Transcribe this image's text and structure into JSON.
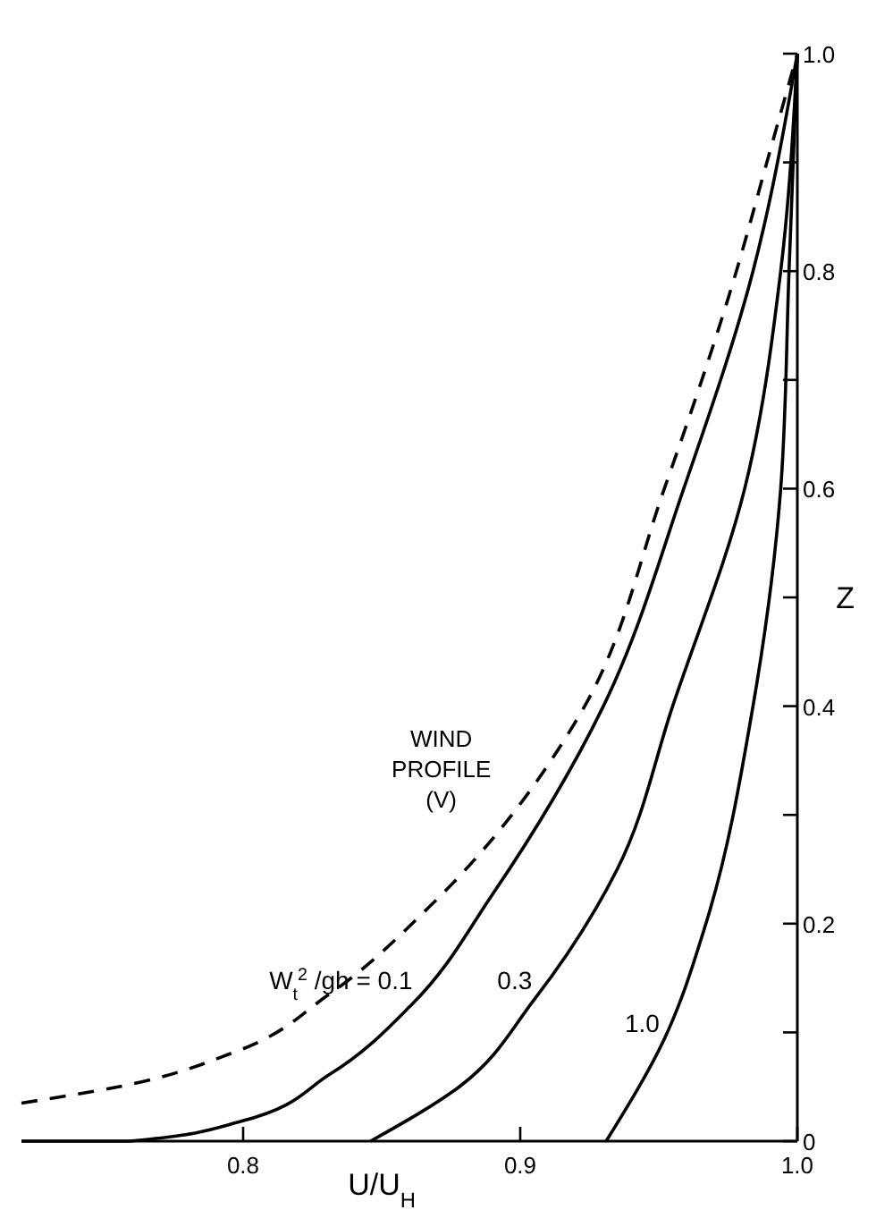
{
  "chart_data": {
    "type": "line",
    "xlabel": "U/U$_{H}$",
    "ylabel": "Z",
    "xlim": [
      0.72,
      1.0
    ],
    "ylim": [
      0,
      1
    ],
    "xticks": [
      0.8,
      0.9,
      {
        "value": 1,
        "label": "1.0"
      }
    ],
    "yticks": [
      0,
      {
        "value": 0.1,
        "label": null
      },
      0.2,
      {
        "value": 0.3,
        "label": null
      },
      0.4,
      {
        "value": 0.5,
        "label": null
      },
      0.6,
      {
        "value": 0.7,
        "label": null
      },
      0.8,
      {
        "value": 0.9,
        "label": null
      },
      {
        "value": 1,
        "label": "1.0"
      }
    ],
    "series": [
      {
        "name": "WIND PROFILE (V)",
        "color": "#000000",
        "line_style": "dashed",
        "x": [
          0.72,
          0.755,
          0.797,
          0.831,
          0.867,
          0.921,
          0.952,
          0.978,
          0.989,
          1.0
        ],
        "values": [
          0.035,
          0.05,
          0.082,
          0.135,
          0.215,
          0.39,
          0.6,
          0.8,
          0.9,
          1.0
        ]
      },
      {
        "name": "W$_{t}$$^{2}$ /gh = 0.1",
        "color": "#000000",
        "line_style": "solid",
        "x": [
          0.72,
          0.759,
          0.799,
          0.831,
          0.861,
          0.89,
          0.93,
          0.959,
          0.984,
          1.0
        ],
        "values": [
          0,
          0,
          0.018,
          0.061,
          0.126,
          0.227,
          0.4,
          0.6,
          0.8,
          1.0
        ]
      },
      {
        "name": "0.3",
        "color": "#000000",
        "line_style": "solid",
        "x": [
          0.846,
          0.878,
          0.905,
          0.935,
          0.955,
          0.981,
          0.994,
          1.0
        ],
        "values": [
          0,
          0.05,
          0.13,
          0.25,
          0.4,
          0.6,
          0.8,
          1.0
        ]
      },
      {
        "name": "1.0",
        "color": "#000000",
        "line_style": "solid",
        "x": [
          0.931,
          0.952,
          0.967,
          0.984,
          0.994,
          0.997,
          1.0
        ],
        "values": [
          0,
          0.094,
          0.2,
          0.4,
          0.6,
          0.8,
          1.0
        ]
      }
    ]
  }
}
